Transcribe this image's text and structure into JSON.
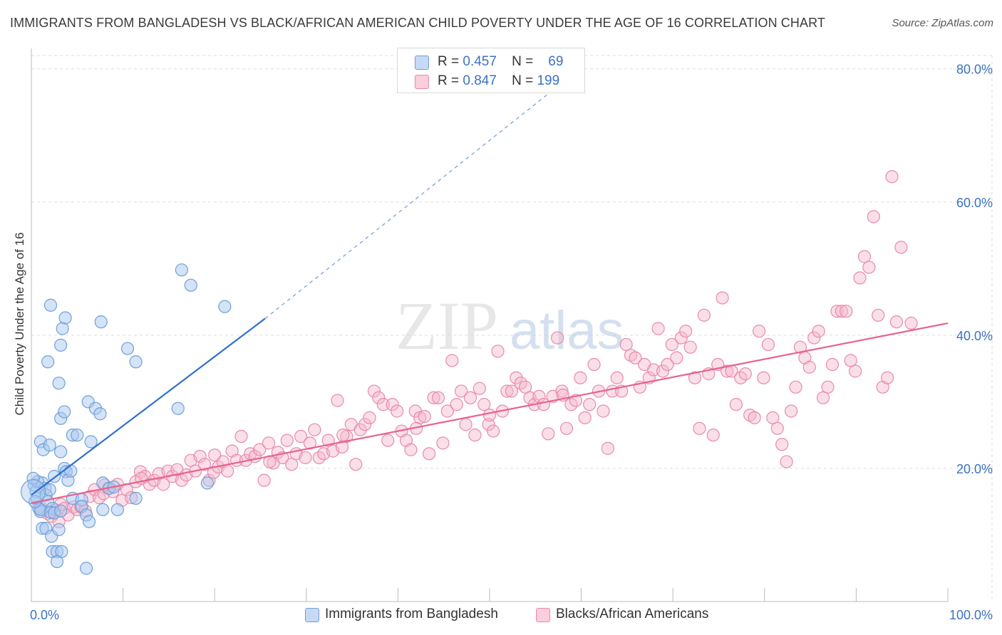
{
  "title": "IMMIGRANTS FROM BANGLADESH VS BLACK/AFRICAN AMERICAN CHILD POVERTY UNDER THE AGE OF 16 CORRELATION CHART",
  "source": "Source: ZipAtlas.com",
  "watermark": "ZIPatlas",
  "colors": {
    "blue_fill": "#a9c8ef",
    "blue_stroke": "#6f9fd9",
    "blue_line": "#2f6fce",
    "pink_fill": "#f5b8cb",
    "pink_stroke": "#e98aa8",
    "pink_line": "#e8628d",
    "value_text": "#3a72c4",
    "grid": "#dddddd"
  },
  "legend_top": [
    {
      "r_label": "R =",
      "r_value": "0.457",
      "n_label": "N =",
      "n_value": "69",
      "color": "blue"
    },
    {
      "r_label": "R =",
      "r_value": "0.847",
      "n_label": "N =",
      "n_value": "199",
      "color": "pink"
    }
  ],
  "legend_bottom": [
    {
      "label": "Immigrants from Bangladesh",
      "color": "blue"
    },
    {
      "label": "Blacks/African Americans",
      "color": "pink"
    }
  ],
  "chart_data": {
    "type": "scatter",
    "title": "IMMIGRANTS FROM BANGLADESH VS BLACK/AFRICAN AMERICAN CHILD POVERTY UNDER THE AGE OF 16 CORRELATION CHART",
    "xlabel": "",
    "ylabel": "Child Poverty Under the Age of 16",
    "x_tick_labels": [
      "0.0%",
      "100.0%"
    ],
    "y_tick_labels": [
      "20.0%",
      "40.0%",
      "60.0%",
      "80.0%"
    ],
    "y_ticks": [
      20,
      40,
      60,
      80
    ],
    "xlim": [
      0,
      100
    ],
    "ylim": [
      0,
      82
    ],
    "grid": true,
    "legend_position": "top-center",
    "series": [
      {
        "name": "Immigrants from Bangladesh",
        "color": "blue",
        "trend": {
          "x0": 0,
          "y0": 16.0,
          "x1": 25.5,
          "y1": 42.5,
          "x_dash_end": 58,
          "y_dash_end": 78
        },
        "points": [
          [
            0.3,
            17.5
          ],
          [
            0.5,
            16.5
          ],
          [
            0.6,
            15.5
          ],
          [
            0.8,
            14.0
          ],
          [
            1.0,
            13.5
          ],
          [
            1.2,
            17.8
          ],
          [
            0.7,
            18.0
          ],
          [
            1.5,
            17.0
          ],
          [
            1.6,
            16.0
          ],
          [
            2.0,
            16.8
          ],
          [
            1.8,
            15.0
          ],
          [
            2.3,
            14.0
          ],
          [
            1.0,
            13.8
          ],
          [
            2.1,
            13.4
          ],
          [
            2.5,
            13.3
          ],
          [
            3.2,
            13.6
          ],
          [
            1.2,
            11.0
          ],
          [
            1.6,
            11.0
          ],
          [
            2.2,
            9.8
          ],
          [
            3.0,
            10.8
          ],
          [
            2.3,
            7.5
          ],
          [
            2.8,
            7.5
          ],
          [
            3.3,
            7.5
          ],
          [
            2.8,
            6.0
          ],
          [
            6.0,
            5.0
          ],
          [
            1.0,
            24.0
          ],
          [
            1.3,
            22.8
          ],
          [
            2.0,
            23.5
          ],
          [
            3.2,
            22.5
          ],
          [
            3.6,
            20.0
          ],
          [
            3.8,
            19.5
          ],
          [
            4.0,
            18.2
          ],
          [
            4.3,
            19.6
          ],
          [
            2.5,
            18.8
          ],
          [
            3.2,
            27.5
          ],
          [
            3.6,
            28.5
          ],
          [
            4.5,
            25.0
          ],
          [
            5.0,
            25.0
          ],
          [
            6.5,
            24.0
          ],
          [
            6.2,
            30.0
          ],
          [
            7.0,
            29.0
          ],
          [
            7.5,
            28.2
          ],
          [
            3.0,
            32.8
          ],
          [
            1.8,
            36.0
          ],
          [
            3.2,
            38.5
          ],
          [
            3.4,
            41.0
          ],
          [
            3.7,
            42.6
          ],
          [
            2.1,
            44.5
          ],
          [
            7.6,
            42.0
          ],
          [
            10.5,
            38.0
          ],
          [
            11.4,
            36.0
          ],
          [
            4.5,
            15.5
          ],
          [
            5.5,
            15.3
          ],
          [
            5.5,
            14.3
          ],
          [
            6.0,
            13.0
          ],
          [
            6.3,
            12.0
          ],
          [
            7.8,
            13.8
          ],
          [
            9.4,
            13.8
          ],
          [
            7.8,
            17.8
          ],
          [
            8.5,
            17.0
          ],
          [
            11.4,
            15.5
          ],
          [
            16.0,
            29.0
          ],
          [
            16.4,
            49.8
          ],
          [
            17.4,
            47.5
          ],
          [
            19.2,
            17.8
          ],
          [
            21.1,
            44.3
          ],
          [
            0.2,
            18.5
          ],
          [
            0.4,
            15.0
          ],
          [
            9.0,
            17.2
          ]
        ]
      },
      {
        "name": "Blacks/African Americans",
        "color": "pink",
        "trend": {
          "x0": 0,
          "y0": 14.8,
          "x1": 100,
          "y1": 41.8
        },
        "points": [
          [
            1.0,
            14.2
          ],
          [
            1.8,
            13.2
          ],
          [
            2.2,
            12.8
          ],
          [
            2.6,
            13.8
          ],
          [
            3.2,
            14.6
          ],
          [
            3.6,
            14.0
          ],
          [
            4.0,
            13.0
          ],
          [
            4.6,
            14.2
          ],
          [
            5.0,
            13.8
          ],
          [
            5.4,
            14.2
          ],
          [
            5.9,
            13.6
          ],
          [
            6.4,
            15.8
          ],
          [
            6.9,
            16.8
          ],
          [
            7.4,
            15.6
          ],
          [
            7.9,
            16.2
          ],
          [
            8.4,
            17.0
          ],
          [
            8.9,
            16.5
          ],
          [
            9.4,
            17.6
          ],
          [
            9.9,
            15.2
          ],
          [
            10.4,
            16.8
          ],
          [
            10.9,
            15.6
          ],
          [
            11.4,
            18.0
          ],
          [
            11.9,
            19.5
          ],
          [
            12.4,
            18.8
          ],
          [
            12.9,
            17.6
          ],
          [
            13.4,
            18.2
          ],
          [
            13.9,
            19.2
          ],
          [
            14.4,
            17.6
          ],
          [
            14.9,
            19.6
          ],
          [
            15.4,
            18.8
          ],
          [
            15.9,
            19.8
          ],
          [
            16.4,
            18.2
          ],
          [
            16.9,
            19.0
          ],
          [
            17.4,
            21.2
          ],
          [
            17.9,
            19.6
          ],
          [
            18.4,
            21.8
          ],
          [
            18.9,
            20.6
          ],
          [
            19.4,
            18.2
          ],
          [
            19.9,
            19.4
          ],
          [
            20.4,
            20.2
          ],
          [
            20.9,
            21.0
          ],
          [
            21.4,
            19.6
          ],
          [
            21.9,
            22.6
          ],
          [
            22.4,
            21.2
          ],
          [
            22.9,
            24.8
          ],
          [
            23.4,
            21.2
          ],
          [
            23.9,
            22.2
          ],
          [
            24.4,
            21.8
          ],
          [
            24.9,
            22.8
          ],
          [
            25.4,
            18.2
          ],
          [
            25.9,
            23.8
          ],
          [
            26.4,
            20.8
          ],
          [
            26.9,
            22.4
          ],
          [
            27.4,
            21.6
          ],
          [
            27.9,
            24.2
          ],
          [
            28.4,
            20.6
          ],
          [
            28.9,
            22.2
          ],
          [
            29.4,
            24.8
          ],
          [
            29.9,
            21.6
          ],
          [
            30.4,
            23.8
          ],
          [
            30.9,
            25.8
          ],
          [
            31.4,
            21.6
          ],
          [
            31.9,
            22.2
          ],
          [
            32.4,
            24.2
          ],
          [
            32.9,
            22.6
          ],
          [
            33.4,
            30.2
          ],
          [
            33.9,
            23.2
          ],
          [
            34.4,
            24.8
          ],
          [
            34.9,
            26.6
          ],
          [
            35.4,
            20.6
          ],
          [
            35.9,
            25.8
          ],
          [
            36.4,
            26.6
          ],
          [
            36.9,
            27.6
          ],
          [
            37.4,
            31.6
          ],
          [
            37.9,
            30.6
          ],
          [
            38.4,
            29.6
          ],
          [
            38.9,
            24.2
          ],
          [
            39.4,
            29.6
          ],
          [
            39.9,
            28.6
          ],
          [
            40.4,
            25.6
          ],
          [
            40.9,
            24.2
          ],
          [
            41.4,
            22.8
          ],
          [
            41.9,
            28.6
          ],
          [
            42.4,
            27.6
          ],
          [
            42.9,
            27.8
          ],
          [
            43.4,
            22.2
          ],
          [
            43.9,
            30.6
          ],
          [
            44.4,
            30.6
          ],
          [
            44.9,
            23.8
          ],
          [
            45.4,
            28.6
          ],
          [
            45.9,
            36.2
          ],
          [
            46.4,
            29.6
          ],
          [
            46.9,
            31.6
          ],
          [
            47.4,
            26.6
          ],
          [
            47.9,
            30.6
          ],
          [
            48.4,
            25.0
          ],
          [
            48.9,
            32.0
          ],
          [
            49.4,
            29.6
          ],
          [
            49.9,
            26.6
          ],
          [
            50.4,
            25.6
          ],
          [
            50.9,
            37.6
          ],
          [
            51.4,
            28.6
          ],
          [
            51.9,
            31.6
          ],
          [
            52.4,
            31.6
          ],
          [
            52.9,
            33.6
          ],
          [
            53.4,
            32.8
          ],
          [
            53.9,
            32.2
          ],
          [
            54.4,
            30.6
          ],
          [
            54.9,
            29.6
          ],
          [
            55.4,
            30.8
          ],
          [
            55.9,
            29.6
          ],
          [
            56.4,
            25.2
          ],
          [
            56.9,
            30.8
          ],
          [
            57.4,
            39.6
          ],
          [
            57.9,
            31.6
          ],
          [
            58.4,
            26.0
          ],
          [
            58.9,
            29.6
          ],
          [
            59.4,
            30.2
          ],
          [
            59.9,
            33.6
          ],
          [
            60.4,
            27.6
          ],
          [
            60.9,
            29.6
          ],
          [
            61.4,
            35.6
          ],
          [
            61.9,
            31.6
          ],
          [
            62.4,
            28.6
          ],
          [
            62.9,
            23.0
          ],
          [
            63.4,
            31.6
          ],
          [
            63.9,
            33.6
          ],
          [
            64.4,
            31.6
          ],
          [
            64.9,
            38.6
          ],
          [
            65.4,
            37.0
          ],
          [
            65.9,
            36.6
          ],
          [
            66.4,
            32.2
          ],
          [
            66.9,
            35.6
          ],
          [
            67.4,
            33.6
          ],
          [
            67.9,
            34.8
          ],
          [
            68.4,
            41.0
          ],
          [
            68.9,
            34.6
          ],
          [
            69.4,
            35.6
          ],
          [
            69.9,
            38.6
          ],
          [
            70.4,
            36.6
          ],
          [
            70.9,
            39.6
          ],
          [
            71.4,
            40.6
          ],
          [
            71.9,
            38.2
          ],
          [
            72.4,
            33.6
          ],
          [
            72.9,
            26.0
          ],
          [
            73.4,
            43.0
          ],
          [
            73.9,
            34.2
          ],
          [
            74.4,
            25.0
          ],
          [
            74.9,
            35.6
          ],
          [
            75.4,
            45.6
          ],
          [
            75.9,
            34.6
          ],
          [
            76.4,
            34.6
          ],
          [
            76.9,
            29.6
          ],
          [
            77.4,
            33.6
          ],
          [
            77.9,
            34.2
          ],
          [
            78.4,
            28.0
          ],
          [
            78.9,
            27.6
          ],
          [
            79.4,
            40.6
          ],
          [
            79.9,
            33.6
          ],
          [
            80.4,
            38.6
          ],
          [
            80.9,
            27.6
          ],
          [
            81.4,
            26.0
          ],
          [
            81.9,
            23.6
          ],
          [
            82.4,
            21.0
          ],
          [
            82.9,
            28.6
          ],
          [
            83.4,
            32.2
          ],
          [
            83.9,
            38.2
          ],
          [
            84.4,
            36.6
          ],
          [
            84.9,
            35.2
          ],
          [
            85.4,
            39.6
          ],
          [
            85.9,
            40.6
          ],
          [
            86.4,
            30.6
          ],
          [
            86.9,
            32.2
          ],
          [
            87.4,
            35.6
          ],
          [
            87.9,
            43.6
          ],
          [
            88.4,
            43.6
          ],
          [
            88.9,
            43.6
          ],
          [
            89.4,
            36.2
          ],
          [
            89.9,
            34.6
          ],
          [
            90.4,
            48.6
          ],
          [
            90.9,
            51.8
          ],
          [
            91.4,
            50.2
          ],
          [
            91.9,
            57.8
          ],
          [
            92.4,
            43.0
          ],
          [
            92.9,
            32.2
          ],
          [
            93.4,
            33.6
          ],
          [
            93.9,
            63.8
          ],
          [
            94.4,
            42.0
          ],
          [
            94.9,
            53.2
          ],
          [
            96.0,
            41.8
          ],
          [
            3.0,
            12.0
          ],
          [
            8.0,
            17.5
          ],
          [
            12.0,
            18.5
          ],
          [
            20.0,
            22.0
          ],
          [
            26.0,
            21.0
          ],
          [
            34.0,
            25.0
          ],
          [
            42.0,
            26.0
          ],
          [
            50.0,
            28.0
          ],
          [
            58.0,
            31.0
          ]
        ]
      }
    ]
  }
}
